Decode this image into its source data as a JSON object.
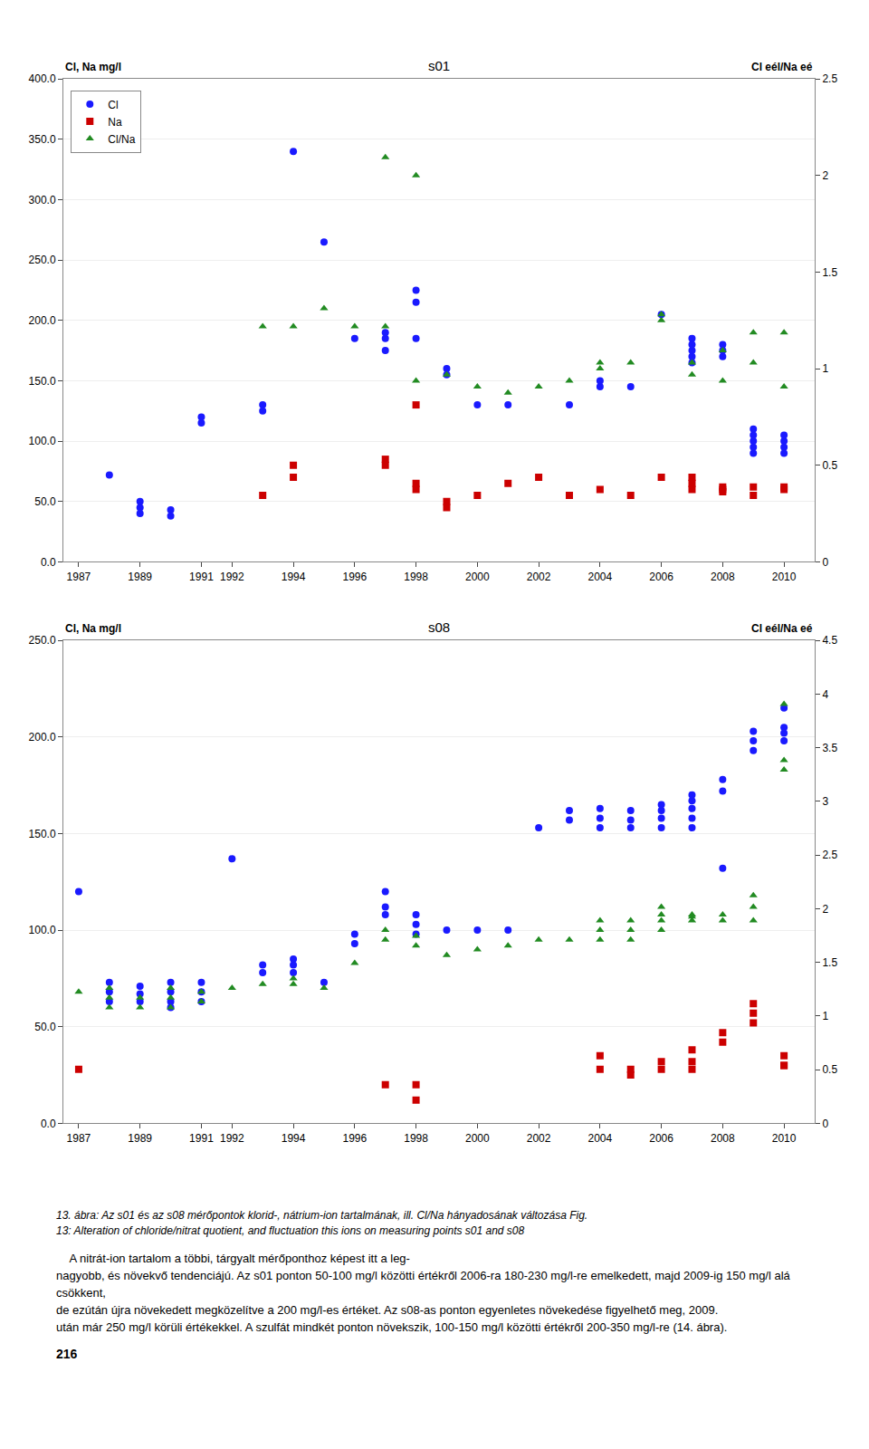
{
  "chart_data": [
    {
      "type": "scatter",
      "title": "s01",
      "ylabel": "Cl, Na mg/l",
      "y2label": "Cl eél/Na eé",
      "xlim": [
        1986.5,
        2011
      ],
      "xticks": [
        1987,
        1989,
        1991,
        1992,
        1994,
        1996,
        1998,
        2000,
        2002,
        2004,
        2006,
        2008,
        2010
      ],
      "ylim": [
        0.0,
        400.0
      ],
      "yticks": [
        {
          "value": 0,
          "label": "0.0"
        },
        {
          "value": 50,
          "label": "50.0"
        },
        {
          "value": 100,
          "label": "100.0"
        },
        {
          "value": 150,
          "label": "150.0"
        },
        {
          "value": 200,
          "label": "200.0"
        },
        {
          "value": 250,
          "label": "250.0"
        },
        {
          "value": 300,
          "label": "300.0"
        },
        {
          "value": 350,
          "label": "350.0"
        },
        {
          "value": 400,
          "label": "400.0"
        }
      ],
      "y2lim": [
        0,
        2.5
      ],
      "y2ticks": [
        0,
        0.5,
        1,
        1.5,
        2,
        2.5
      ],
      "grid": "y",
      "legend": "upper left",
      "series": [
        {
          "name": "Cl",
          "color": "#1a1aff",
          "marker": "circle",
          "x": [
            1988,
            1989,
            1989,
            1989,
            1990,
            1990,
            1991,
            1991,
            1993,
            1993,
            1994,
            1995,
            1996,
            1997,
            1997,
            1997,
            1998,
            1998,
            1998,
            1999,
            1999,
            2000,
            2001,
            2003,
            2004,
            2004,
            2005,
            2006,
            2007,
            2007,
            2007,
            2007,
            2007,
            2008,
            2008,
            2008,
            2009,
            2009,
            2009,
            2009,
            2009,
            2010,
            2010,
            2010,
            2010
          ],
          "values": [
            72,
            40,
            45,
            50,
            38,
            43,
            115,
            120,
            125,
            130,
            340,
            265,
            185,
            175,
            185,
            190,
            185,
            215,
            225,
            155,
            160,
            130,
            130,
            130,
            145,
            150,
            145,
            205,
            165,
            170,
            175,
            180,
            185,
            170,
            175,
            180,
            90,
            95,
            100,
            105,
            110,
            90,
            95,
            100,
            105
          ]
        },
        {
          "name": "Na",
          "color": "#cc0000",
          "marker": "square",
          "x": [
            1993,
            1994,
            1994,
            1997,
            1997,
            1998,
            1998,
            1998,
            1999,
            1999,
            2000,
            2001,
            2002,
            2003,
            2004,
            2005,
            2006,
            2007,
            2007,
            2007,
            2008,
            2008,
            2008,
            2009,
            2009,
            2010,
            2010
          ],
          "values": [
            55,
            80,
            70,
            80,
            85,
            65,
            60,
            130,
            50,
            45,
            55,
            65,
            70,
            55,
            60,
            55,
            70,
            65,
            70,
            60,
            60,
            62,
            58,
            55,
            62,
            60,
            62
          ]
        },
        {
          "name": "Cl/Na",
          "color": "#228B22",
          "marker": "triangle-up",
          "x": [
            1993,
            1994,
            1995,
            1996,
            1997,
            1997,
            1998,
            1998,
            1999,
            2000,
            2001,
            2002,
            2003,
            2004,
            2004,
            2005,
            2006,
            2006,
            2007,
            2007,
            2008,
            2008,
            2009,
            2009,
            2010,
            2010
          ],
          "values": [
            195,
            195,
            210,
            195,
            335,
            195,
            150,
            320,
            155,
            145,
            140,
            145,
            150,
            160,
            165,
            165,
            200,
            205,
            155,
            165,
            150,
            175,
            165,
            190,
            145,
            190
          ]
        }
      ]
    },
    {
      "type": "scatter",
      "title": "s08",
      "ylabel": "Cl, Na mg/l",
      "y2label": "Cl eél/Na eé",
      "xlim": [
        1986.5,
        2011
      ],
      "xticks": [
        1987,
        1989,
        1991,
        1992,
        1994,
        1996,
        1998,
        2000,
        2002,
        2004,
        2006,
        2008,
        2010
      ],
      "ylim": [
        0.0,
        250.0
      ],
      "yticks": [
        {
          "value": 0,
          "label": "0.0"
        },
        {
          "value": 50,
          "label": "50.0"
        },
        {
          "value": 100,
          "label": "100.0"
        },
        {
          "value": 150,
          "label": "150.0"
        },
        {
          "value": 200,
          "label": "200.0"
        },
        {
          "value": 250,
          "label": "250.0"
        }
      ],
      "y2lim": [
        0,
        4.5
      ],
      "y2ticks": [
        0,
        0.5,
        1,
        1.5,
        2,
        2.5,
        3,
        3.5,
        4,
        4.5
      ],
      "grid": "y",
      "series": [
        {
          "name": "Cl",
          "color": "#1a1aff",
          "marker": "circle",
          "x": [
            1987,
            1988,
            1988,
            1988,
            1989,
            1989,
            1989,
            1990,
            1990,
            1990,
            1990,
            1991,
            1991,
            1991,
            1992,
            1993,
            1993,
            1994,
            1994,
            1994,
            1995,
            1996,
            1996,
            1997,
            1997,
            1997,
            1998,
            1998,
            1998,
            1999,
            2000,
            2001,
            2002,
            2003,
            2003,
            2004,
            2004,
            2004,
            2005,
            2005,
            2005,
            2006,
            2006,
            2006,
            2006,
            2007,
            2007,
            2007,
            2007,
            2007,
            2008,
            2008,
            2008,
            2009,
            2009,
            2009,
            2010,
            2010,
            2010,
            2010
          ],
          "values": [
            120,
            63,
            68,
            73,
            63,
            67,
            71,
            60,
            63,
            68,
            73,
            63,
            68,
            73,
            137,
            78,
            82,
            78,
            82,
            85,
            73,
            93,
            98,
            108,
            112,
            120,
            98,
            103,
            108,
            100,
            100,
            100,
            153,
            157,
            162,
            153,
            158,
            163,
            153,
            157,
            162,
            153,
            158,
            162,
            165,
            153,
            158,
            163,
            167,
            170,
            172,
            178,
            132,
            193,
            198,
            203,
            198,
            202,
            205,
            215
          ]
        },
        {
          "name": "Na",
          "color": "#cc0000",
          "marker": "square",
          "x": [
            1987,
            1997,
            1998,
            1998,
            2004,
            2004,
            2005,
            2005,
            2006,
            2006,
            2007,
            2007,
            2007,
            2008,
            2008,
            2009,
            2009,
            2009,
            2010,
            2010,
            2010
          ],
          "values": [
            28,
            20,
            20,
            12,
            28,
            35,
            25,
            28,
            28,
            32,
            28,
            32,
            38,
            42,
            47,
            52,
            57,
            62,
            30,
            30,
            35
          ]
        },
        {
          "name": "Cl/Na",
          "color": "#228B22",
          "marker": "triangle-up",
          "x": [
            1987,
            1988,
            1988,
            1988,
            1989,
            1989,
            1990,
            1990,
            1990,
            1991,
            1991,
            1992,
            1993,
            1994,
            1994,
            1995,
            1996,
            1997,
            1997,
            1998,
            1998,
            1999,
            2000,
            2001,
            2002,
            2003,
            2004,
            2004,
            2004,
            2005,
            2005,
            2005,
            2006,
            2006,
            2006,
            2006,
            2007,
            2007,
            2007,
            2008,
            2008,
            2009,
            2009,
            2009,
            2010,
            2010,
            2010
          ],
          "values": [
            68,
            60,
            65,
            70,
            60,
            65,
            60,
            65,
            70,
            63,
            68,
            70,
            72,
            72,
            75,
            70,
            83,
            95,
            100,
            92,
            97,
            87,
            90,
            92,
            95,
            95,
            95,
            100,
            105,
            95,
            100,
            105,
            100,
            105,
            108,
            112,
            107,
            105,
            108,
            105,
            108,
            105,
            112,
            118,
            183,
            188,
            217
          ]
        }
      ]
    }
  ],
  "caption": [
    "13. ábra: Az s01 és az s08 mérőpontok klorid-, nátrium-ion tartalmának, ill. Cl/Na hányadosának változása Fig.",
    "13: Alteration of chloride/nitrat quotient, and fluctuation this ions on measuring points s01 and s08"
  ],
  "body_text": [
    "    A nitrát-ion tartalom a többi, tárgyalt mérőponthoz képest itt a leg-",
    "nagyobb, és növekvő tendenciájú. Az s01 ponton 50-100 mg/l közötti értékről 2006-ra 180-230 mg/l-re emelkedett, majd 2009-ig 150 mg/l alá csökkent,",
    "de ezútán újra növekedett megközelítve a 200 mg/l-es értéket. Az s08-as ponton egyenletes növekedése figyelhető meg, 2009.",
    "után már 250 mg/l körüli értékekkel. A szulfát mindkét ponton növekszik, 100-150 mg/l közötti értékről 200-350 mg/l-re (14. ábra)."
  ],
  "page_number": "216"
}
